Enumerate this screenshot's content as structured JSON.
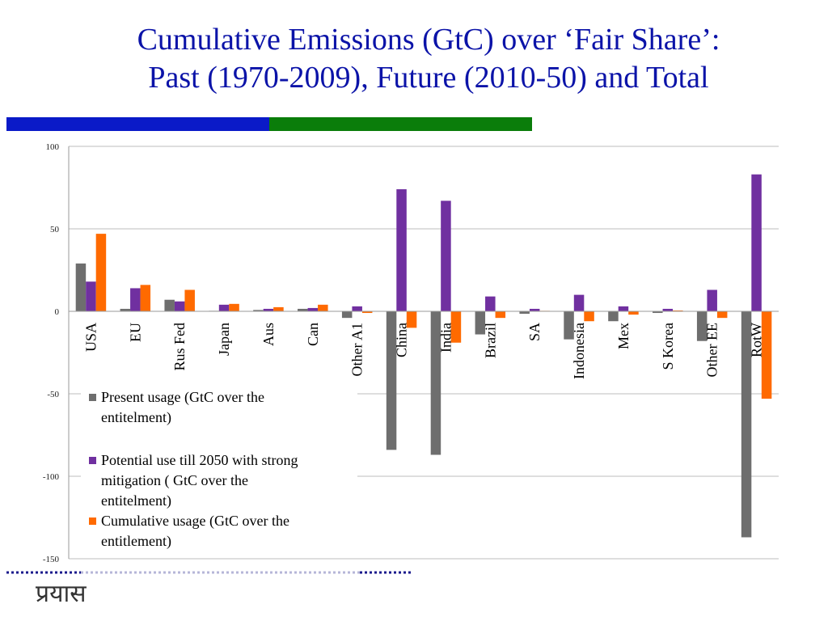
{
  "title": {
    "line1": "Cumulative Emissions (GtC) over ‘Fair Share’:",
    "line2": "Past (1970-2009), Future (2010-50) and Total"
  },
  "logo_text": "प्रयास",
  "colors": {
    "title": "#0b13a8",
    "band_blue": "#0a1ac8",
    "band_green": "#0a7d0a",
    "series": [
      "#6e6e6e",
      "#7030a0",
      "#ff6a00"
    ],
    "dots_dark": "#1a1a8c",
    "dots_light": "#b6b6d8"
  },
  "chart_data": {
    "type": "bar",
    "ylim": [
      -150,
      100
    ],
    "yticks": [
      100,
      50,
      0,
      -50,
      -100,
      -150
    ],
    "grid": true,
    "legend_position": "bottom-left",
    "categories": [
      "USA",
      "EU",
      "Rus Fed",
      "Japan",
      "Aus",
      "Can",
      "Other A1",
      "China",
      "India",
      "Brazil",
      "SA",
      "Indonesia",
      "Mex",
      "S Korea",
      "Other EE",
      "RotW"
    ],
    "series": [
      {
        "name": "Present usage (GtC over the entitelment)",
        "values": [
          29,
          1.5,
          7,
          0.3,
          0.8,
          1.5,
          -4,
          -84,
          -87,
          -14,
          -1.5,
          -17,
          -6,
          -1,
          -18,
          -137
        ]
      },
      {
        "name": "Potential use till 2050 with strong mitigation ( GtC over the entitelment)",
        "values": [
          18,
          14,
          6,
          4,
          1.5,
          2,
          3,
          74,
          67,
          9,
          1.5,
          10,
          3,
          1.5,
          13,
          83
        ]
      },
      {
        "name": "Cumulative usage (GtC over the entitlement)",
        "values": [
          47,
          16,
          13,
          4.5,
          2.5,
          4,
          -1,
          -10,
          -19,
          -4,
          0.3,
          -6,
          -2,
          0.5,
          -4,
          -53
        ]
      }
    ]
  }
}
